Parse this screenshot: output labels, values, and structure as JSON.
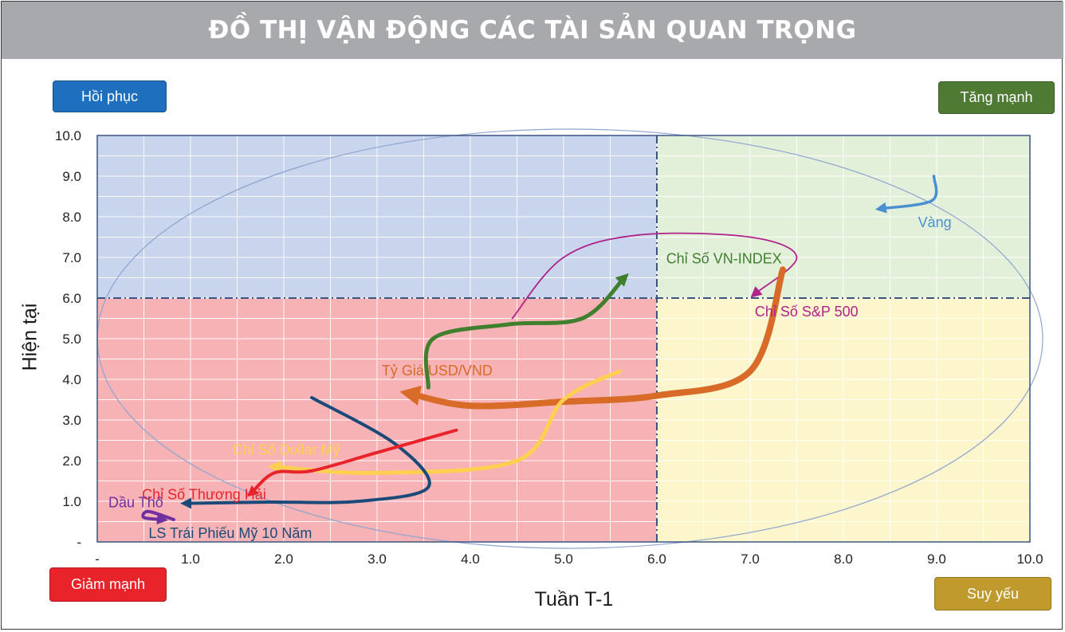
{
  "title": "ĐỒ THỊ VẬN ĐỘNG CÁC TÀI SẢN QUAN TRỌNG",
  "quadrants": {
    "top_left": {
      "label": "Hồi phục",
      "color": "#1f6fbf"
    },
    "top_right": {
      "label": "Tăng mạnh",
      "color": "#4e7a34"
    },
    "bottom_left": {
      "label": "Giảm mạnh",
      "color": "#e8232a"
    },
    "bottom_right": {
      "label": "Suy yếu",
      "color": "#c09a2c"
    }
  },
  "chart_data": {
    "type": "line",
    "xlabel": "Tuần T-1",
    "ylabel": "Hiện tại",
    "xlim": [
      0,
      10
    ],
    "ylim": [
      0,
      10
    ],
    "xticks": [
      "-",
      "1.0",
      "2.0",
      "3.0",
      "4.0",
      "5.0",
      "6.0",
      "7.0",
      "8.0",
      "9.0",
      "10.0"
    ],
    "yticks": [
      "-",
      "1.0",
      "2.0",
      "3.0",
      "4.0",
      "5.0",
      "6.0",
      "7.0",
      "8.0",
      "9.0",
      "10.0"
    ],
    "grid": true,
    "x_divider": 6.0,
    "y_divider": 6.0,
    "quadrant_fills": {
      "top_left": "#c9d5ec",
      "top_right": "#e3f0d9",
      "bottom_left": "#f6b2b5",
      "bottom_right": "#fdf5cc"
    },
    "series": [
      {
        "name": "Vàng",
        "color": "#4a90d0",
        "width": 3.5,
        "points": [
          [
            8.97,
            9.0
          ],
          [
            8.95,
            8.4
          ],
          [
            8.4,
            8.2
          ]
        ],
        "label_pos": [
          8.8,
          7.75
        ]
      },
      {
        "name": "Chỉ Số VN-INDEX",
        "color": "#3f7f2e",
        "width": 5,
        "points": [
          [
            3.55,
            3.8
          ],
          [
            3.6,
            5.0
          ],
          [
            4.4,
            5.35
          ],
          [
            5.2,
            5.5
          ],
          [
            5.65,
            6.5
          ]
        ],
        "label_pos": [
          6.1,
          6.85
        ]
      },
      {
        "name": "Chỉ Số S&P 500",
        "color": "#b0238a",
        "width": 1.8,
        "points": [
          [
            4.45,
            5.5
          ],
          [
            5.0,
            7.0
          ],
          [
            5.8,
            7.55
          ],
          [
            7.0,
            7.5
          ],
          [
            7.5,
            7.0
          ],
          [
            7.05,
            6.1
          ]
        ],
        "label_pos": [
          7.05,
          5.55
        ]
      },
      {
        "name": "Tỷ Giá USD/VND",
        "color": "#d86b28",
        "width": 8,
        "points": [
          [
            7.35,
            6.7
          ],
          [
            7.0,
            4.2
          ],
          [
            6.0,
            3.6
          ],
          [
            5.0,
            3.45
          ],
          [
            4.0,
            3.35
          ],
          [
            3.35,
            3.65
          ]
        ],
        "label_pos": [
          3.05,
          4.1
        ]
      },
      {
        "name": "Chỉ Số Dollar Mỹ",
        "color": "#ffd050",
        "width": 5,
        "points": [
          [
            5.6,
            4.2
          ],
          [
            5.0,
            3.5
          ],
          [
            4.5,
            2.0
          ],
          [
            3.0,
            1.7
          ],
          [
            1.9,
            1.85
          ]
        ],
        "label_pos": [
          1.45,
          2.15
        ]
      },
      {
        "name": "LS Trái Phiếu Mỹ 10 Năm",
        "color": "#1b4a79",
        "width": 4,
        "points": [
          [
            2.3,
            3.55
          ],
          [
            3.2,
            2.4
          ],
          [
            3.55,
            1.35
          ],
          [
            2.8,
            1.0
          ],
          [
            1.85,
            0.98
          ],
          [
            0.95,
            0.95
          ]
        ],
        "label_pos": [
          0.55,
          0.1
        ]
      },
      {
        "name": "Chỉ Số Thương Hải",
        "color": "#e8232a",
        "width": 4,
        "points": [
          [
            3.85,
            2.75
          ],
          [
            3.0,
            2.2
          ],
          [
            2.3,
            1.75
          ],
          [
            1.9,
            1.7
          ],
          [
            1.65,
            1.2
          ]
        ],
        "label_pos": [
          0.48,
          1.05
        ]
      },
      {
        "name": "Dầu Thô",
        "color": "#7030a0",
        "width": 4,
        "points": [
          [
            0.82,
            0.55
          ],
          [
            0.55,
            0.75
          ],
          [
            0.5,
            0.6
          ],
          [
            0.7,
            0.55
          ]
        ],
        "label_pos": [
          0.12,
          0.85
        ]
      }
    ]
  }
}
